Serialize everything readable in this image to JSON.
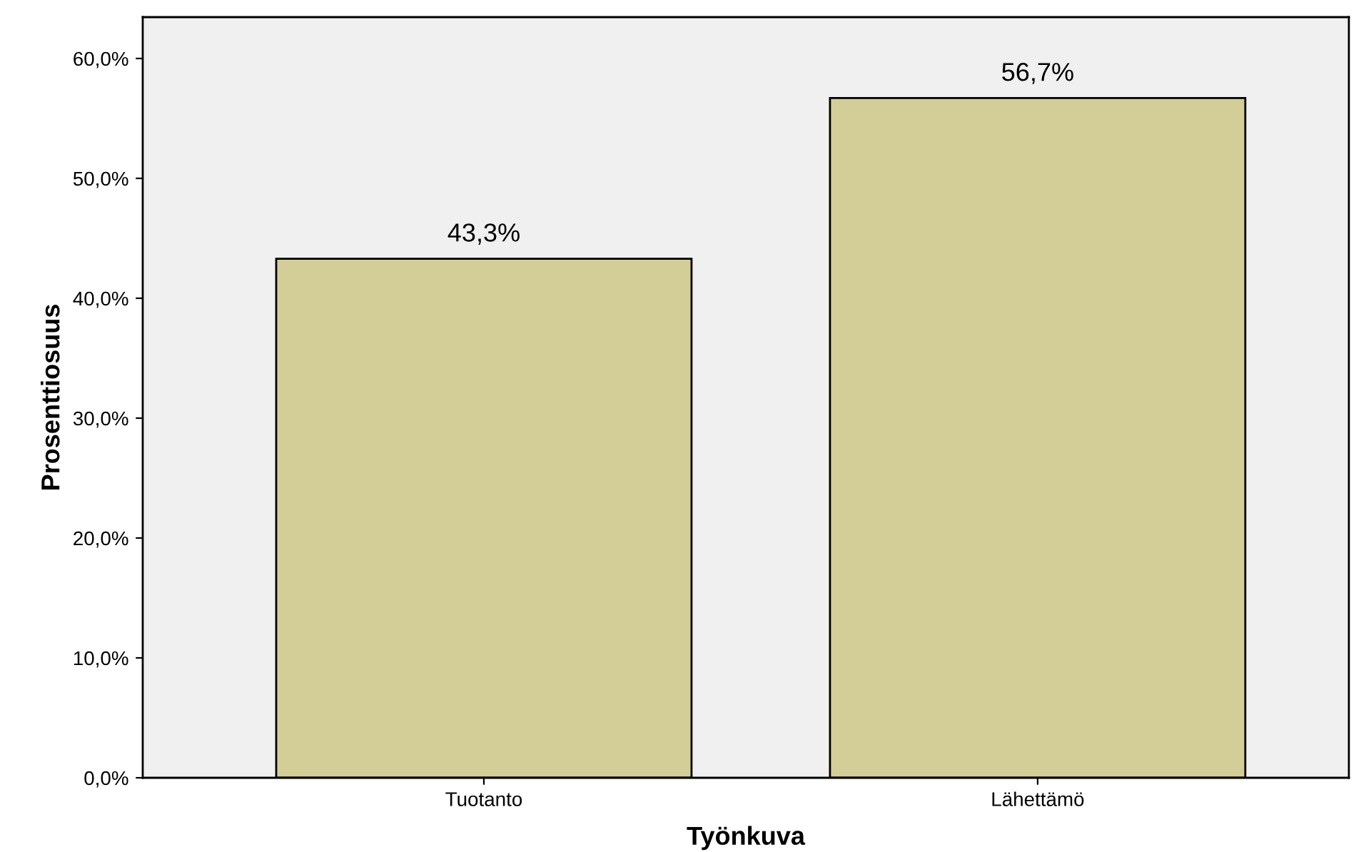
{
  "chart_data": {
    "type": "bar",
    "xlabel": "Työnkuva",
    "ylabel": "Prosenttiosuus",
    "categories": [
      "Tuotanto",
      "Lähettämö"
    ],
    "values": [
      43.3,
      56.7
    ],
    "value_labels": [
      "43,3%",
      "56,7%"
    ],
    "color": "#d3ce98",
    "ylim": [
      0,
      63.45
    ],
    "yticks": [
      {
        "value": 0,
        "label": "0,0%"
      },
      {
        "value": 10,
        "label": "10,0%"
      },
      {
        "value": 20,
        "label": "20,0%"
      },
      {
        "value": 30,
        "label": "30,0%"
      },
      {
        "value": 40,
        "label": "40,0%"
      },
      {
        "value": 50,
        "label": "50,0%"
      },
      {
        "value": 60,
        "label": "60,0%"
      }
    ],
    "grid": false,
    "legend": false
  }
}
